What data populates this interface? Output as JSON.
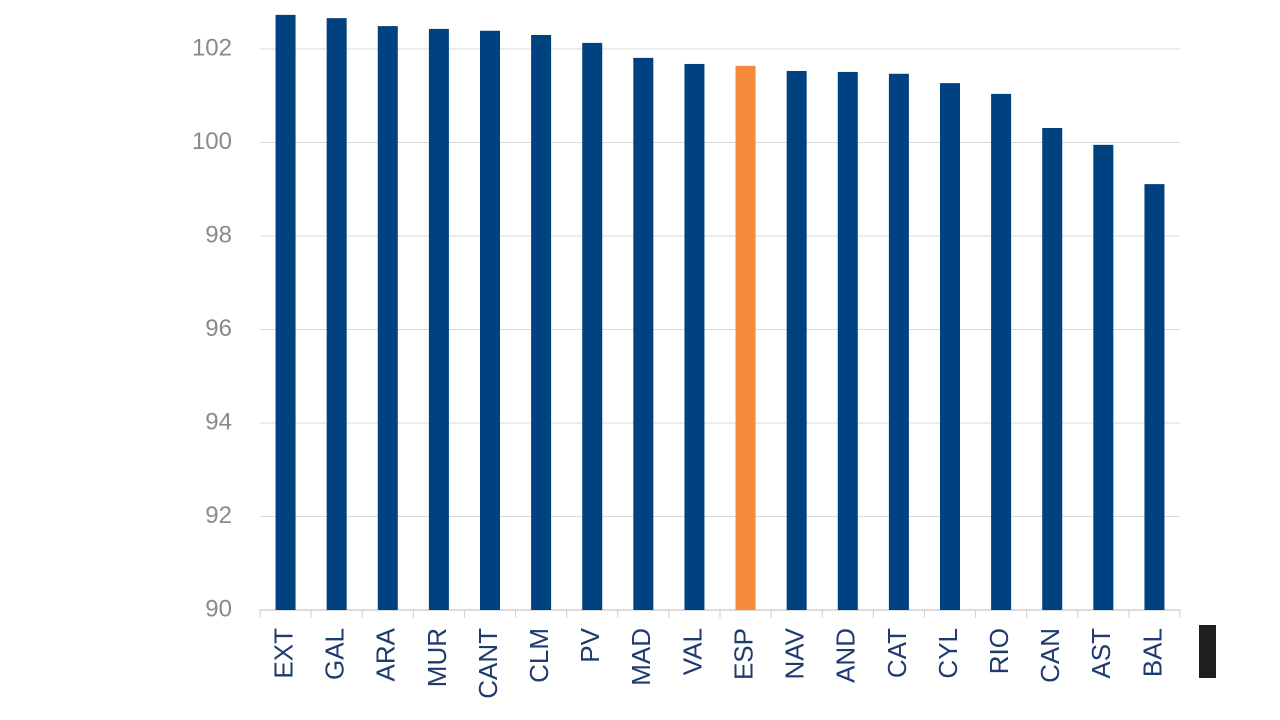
{
  "chart_data": {
    "type": "bar",
    "categories": [
      "EXT",
      "GAL",
      "ARA",
      "MUR",
      "CANT",
      "CLM",
      "PV",
      "MAD",
      "VAL",
      "ESP",
      "NAV",
      "AND",
      "CAT",
      "CYL",
      "RIO",
      "CAN",
      "AST",
      "BAL"
    ],
    "values": [
      102.73,
      102.66,
      102.49,
      102.43,
      102.39,
      102.3,
      102.13,
      101.81,
      101.68,
      101.64,
      101.53,
      101.51,
      101.47,
      101.27,
      101.04,
      100.31,
      99.95,
      99.11
    ],
    "colors": [
      "#004180",
      "#004180",
      "#004180",
      "#004180",
      "#004180",
      "#004180",
      "#004180",
      "#004180",
      "#004180",
      "#f58a3c",
      "#004180",
      "#004180",
      "#004180",
      "#004180",
      "#004180",
      "#004180",
      "#004180",
      "#004180"
    ],
    "ylim": [
      90,
      103
    ],
    "yticks": [
      90,
      92,
      94,
      96,
      98,
      100,
      102
    ],
    "grid": true
  }
}
